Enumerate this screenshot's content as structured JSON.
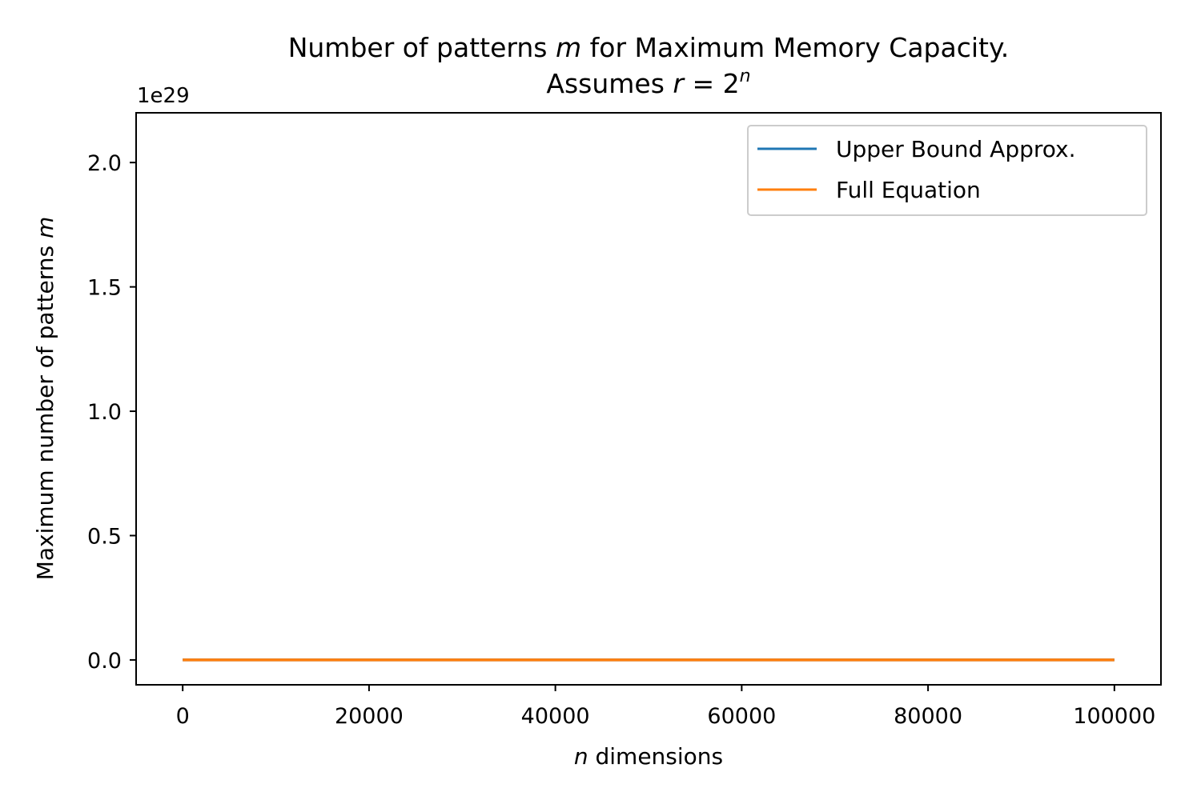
{
  "chart_data": {
    "type": "line",
    "title_line1_a": "Number of patterns ",
    "title_line1_var": "m",
    "title_line1_b": " for Maximum Memory Capacity.",
    "title_line2_a": "Assumes ",
    "title_line2_r": "r",
    "title_line2_eq": " = 2",
    "title_line2_sup": "n",
    "xlabel_var": "n",
    "xlabel_text": " dimensions",
    "ylabel_text": "Maximum number of patterns ",
    "ylabel_var": "m",
    "y_offset_text": "1e29",
    "y_scale": 1e+29,
    "xlim": [
      -5000,
      105000
    ],
    "ylim": [
      -0.1,
      2.2
    ],
    "x_ticks": [
      0,
      20000,
      40000,
      60000,
      80000,
      100000
    ],
    "x_tick_labels": [
      "0",
      "20000",
      "40000",
      "60000",
      "80000",
      "100000"
    ],
    "y_ticks": [
      0.0,
      0.5,
      1.0,
      1.5,
      2.0
    ],
    "y_tick_labels": [
      "0.0",
      "0.5",
      "1.0",
      "1.5",
      "2.0"
    ],
    "grid": false,
    "legend_position": "top-right",
    "series": [
      {
        "name": "Upper Bound Approx.",
        "color": "#1f77b4",
        "x": [
          0,
          100000
        ],
        "y": [
          0,
          0
        ]
      },
      {
        "name": "Full Equation",
        "color": "#ff7f0e",
        "x": [
          0,
          100000
        ],
        "y": [
          0,
          0
        ]
      }
    ]
  }
}
